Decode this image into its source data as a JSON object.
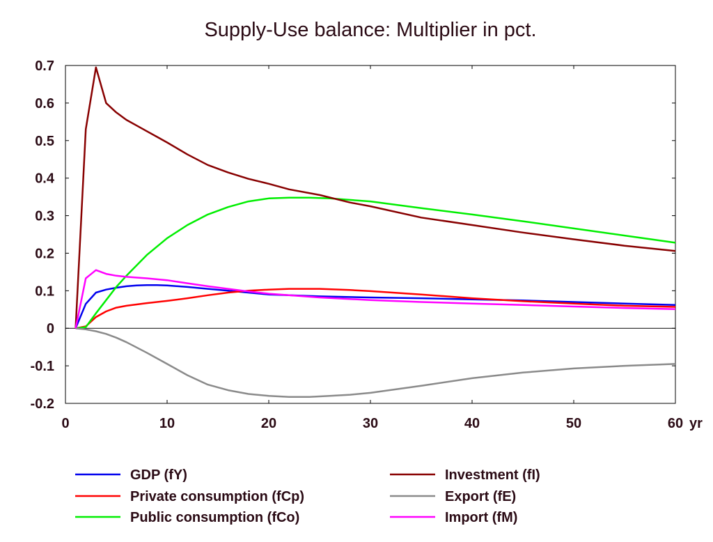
{
  "chart_data": {
    "type": "line",
    "title": "Supply-Use balance: Multiplier in pct.",
    "xlabel": "",
    "ylabel": "",
    "x_unit": "yr",
    "xlim": [
      0,
      60
    ],
    "ylim": [
      -0.2,
      0.7
    ],
    "xticks": [
      "0",
      "10",
      "20",
      "30",
      "40",
      "50",
      "60"
    ],
    "yticks": [
      "-0.2",
      "-0.1",
      "0",
      "0.1",
      "0.2",
      "0.3",
      "0.4",
      "0.5",
      "0.6",
      "0.7"
    ],
    "grid": false,
    "legend_position": "bottom",
    "series": [
      {
        "name": "GDP (fY)",
        "color": "#0000ee",
        "x": [
          1,
          2,
          3,
          4,
          5,
          6,
          7,
          8,
          9,
          10,
          12,
          14,
          16,
          18,
          20,
          22,
          25,
          30,
          35,
          40,
          45,
          50,
          55,
          60
        ],
        "y": [
          0,
          0.065,
          0.095,
          0.103,
          0.108,
          0.112,
          0.114,
          0.115,
          0.115,
          0.114,
          0.11,
          0.105,
          0.1,
          0.095,
          0.09,
          0.088,
          0.085,
          0.082,
          0.08,
          0.077,
          0.074,
          0.07,
          0.066,
          0.062
        ]
      },
      {
        "name": "Private consumption (fCp)",
        "color": "#ff0000",
        "x": [
          1,
          2,
          3,
          4,
          5,
          6,
          8,
          10,
          12,
          14,
          16,
          18,
          20,
          22,
          25,
          28,
          30,
          35,
          40,
          45,
          50,
          55,
          60
        ],
        "y": [
          0,
          0.005,
          0.03,
          0.045,
          0.055,
          0.06,
          0.067,
          0.073,
          0.08,
          0.088,
          0.095,
          0.1,
          0.103,
          0.105,
          0.105,
          0.102,
          0.099,
          0.09,
          0.08,
          0.072,
          0.066,
          0.06,
          0.057
        ]
      },
      {
        "name": "Public consumption (fCo)",
        "color": "#00ee00",
        "x": [
          1,
          2,
          3,
          4,
          5,
          6,
          8,
          10,
          12,
          14,
          16,
          18,
          20,
          22,
          24,
          26,
          30,
          35,
          40,
          45,
          50,
          55,
          60
        ],
        "y": [
          0,
          0.003,
          0.04,
          0.075,
          0.11,
          0.14,
          0.195,
          0.24,
          0.275,
          0.303,
          0.323,
          0.338,
          0.346,
          0.348,
          0.348,
          0.346,
          0.338,
          0.32,
          0.303,
          0.285,
          0.266,
          0.247,
          0.228
        ]
      },
      {
        "name": "Investment (fI)",
        "color": "#880000",
        "x": [
          1,
          2,
          3,
          4,
          5,
          6,
          7,
          8,
          9,
          10,
          12,
          14,
          16,
          18,
          20,
          22,
          25,
          28,
          30,
          35,
          40,
          45,
          50,
          55,
          60
        ],
        "y": [
          0,
          0.53,
          0.695,
          0.6,
          0.575,
          0.555,
          0.54,
          0.525,
          0.51,
          0.495,
          0.463,
          0.435,
          0.415,
          0.398,
          0.385,
          0.37,
          0.355,
          0.335,
          0.325,
          0.295,
          0.275,
          0.255,
          0.237,
          0.22,
          0.206
        ]
      },
      {
        "name": "Export (fE)",
        "color": "#8a8a8a",
        "x": [
          1,
          2,
          3,
          4,
          5,
          6,
          8,
          10,
          12,
          14,
          16,
          18,
          20,
          22,
          24,
          26,
          28,
          30,
          35,
          40,
          45,
          50,
          55,
          60
        ],
        "y": [
          0,
          -0.003,
          -0.008,
          -0.015,
          -0.025,
          -0.037,
          -0.065,
          -0.095,
          -0.125,
          -0.15,
          -0.165,
          -0.175,
          -0.18,
          -0.183,
          -0.183,
          -0.18,
          -0.177,
          -0.172,
          -0.153,
          -0.133,
          -0.118,
          -0.107,
          -0.1,
          -0.095
        ]
      },
      {
        "name": "Import (fM)",
        "color": "#ff00ff",
        "x": [
          1,
          2,
          3,
          4,
          5,
          6,
          8,
          10,
          12,
          14,
          16,
          18,
          20,
          22,
          25,
          30,
          35,
          40,
          45,
          50,
          55,
          60
        ],
        "y": [
          0,
          0.133,
          0.155,
          0.145,
          0.14,
          0.137,
          0.133,
          0.128,
          0.12,
          0.112,
          0.105,
          0.098,
          0.092,
          0.088,
          0.082,
          0.075,
          0.07,
          0.066,
          0.062,
          0.058,
          0.054,
          0.051
        ]
      }
    ]
  }
}
